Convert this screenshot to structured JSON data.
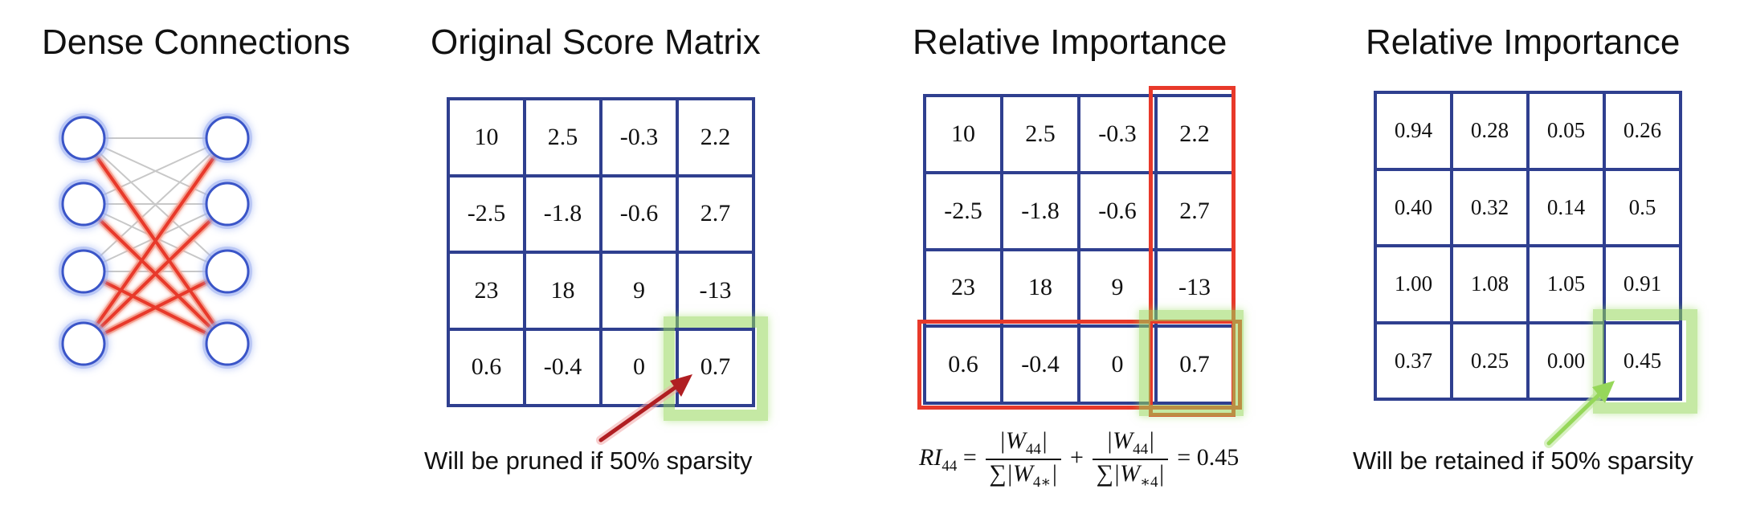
{
  "panels": {
    "dense": {
      "title": "Dense Connections"
    },
    "original": {
      "title": "Original Score Matrix",
      "matrix": [
        [
          "10",
          "2.5",
          "-0.3",
          "2.2"
        ],
        [
          "-2.5",
          "-1.8",
          "-0.6",
          "2.7"
        ],
        [
          "23",
          "18",
          "9",
          "-13"
        ],
        [
          "0.6",
          "-0.4",
          "0",
          "0.7"
        ]
      ],
      "caption": "Will be pruned if 50% sparsity"
    },
    "relative_a": {
      "title": "Relative Importance",
      "matrix": [
        [
          "10",
          "2.5",
          "-0.3",
          "2.2"
        ],
        [
          "-2.5",
          "-1.8",
          "-0.6",
          "2.7"
        ],
        [
          "23",
          "18",
          "9",
          "-13"
        ],
        [
          "0.6",
          "-0.4",
          "0",
          "0.7"
        ]
      ],
      "formula": {
        "lhs": "RI",
        "lhs_sub": "44",
        "num1": "|W",
        "num1_sub": "44",
        "num1_end": "|",
        "den1": "∑|W",
        "den1_sub": "4∗",
        "den1_end": "|",
        "plus": "+",
        "num2": "|W",
        "num2_sub": "44",
        "num2_end": "|",
        "den2": "∑|W",
        "den2_sub": "∗4",
        "den2_end": "|",
        "eq": "=",
        "result": "0.45"
      }
    },
    "relative_b": {
      "title": "Relative Importance",
      "matrix": [
        [
          "0.94",
          "0.28",
          "0.05",
          "0.26"
        ],
        [
          "0.40",
          "0.32",
          "0.14",
          "0.5"
        ],
        [
          "1.00",
          "1.08",
          "1.05",
          "0.91"
        ],
        [
          "0.37",
          "0.25",
          "0.00",
          "0.45"
        ]
      ],
      "caption": "Will be retained if 50% sparsity"
    }
  },
  "colors": {
    "grid_line": "#2f3f8f",
    "highlight_red": "#e8392a",
    "highlight_green": "#96d75a",
    "dense_edge": "#c8c8c8",
    "pruned_arrow": "#b01e22",
    "retained_arrow": "#96d75a",
    "node_stroke": "#3a55c8",
    "node_glow": "#9fb2f2"
  }
}
